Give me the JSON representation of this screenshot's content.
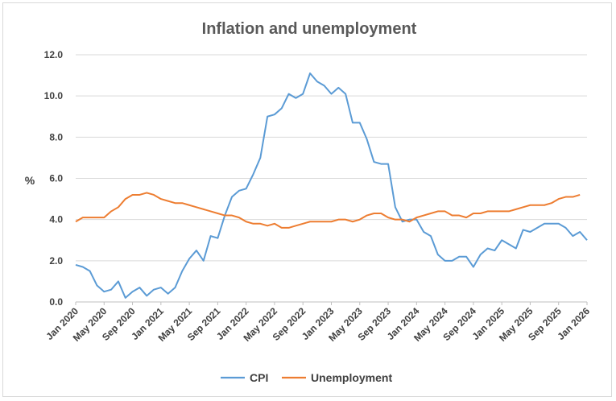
{
  "chart_data": {
    "type": "line",
    "title": "Inflation and unemployment",
    "xlabel": "",
    "ylabel": "%",
    "ylim": [
      0,
      12
    ],
    "yticks": [
      "0.0",
      "2.0",
      "4.0",
      "6.0",
      "8.0",
      "10.0",
      "12.0"
    ],
    "grid": "horizontal",
    "legend_position": "bottom",
    "x_tick_labels": [
      "Jan 2020",
      "May 2020",
      "Sep 2020",
      "Jan 2021",
      "May 2021",
      "Sep 2021",
      "Jan 2022",
      "May 2022",
      "Sep 2022",
      "Jan 2023",
      "May 2023",
      "Sep 2023",
      "Jan 2024",
      "May 2024",
      "Sep 2024",
      "Jan 2025",
      "May 2025",
      "Sep 2025",
      "Jan 2026"
    ],
    "x_start": "Jan 2020",
    "x_end": "Jan 2026",
    "series": [
      {
        "name": "CPI",
        "color": "#5b9bd5",
        "values": [
          1.8,
          1.7,
          1.5,
          0.8,
          0.5,
          0.6,
          1.0,
          0.2,
          0.5,
          0.7,
          0.3,
          0.6,
          0.7,
          0.4,
          0.7,
          1.5,
          2.1,
          2.5,
          2.0,
          3.2,
          3.1,
          4.2,
          5.1,
          5.4,
          5.5,
          6.2,
          7.0,
          9.0,
          9.1,
          9.4,
          10.1,
          9.9,
          10.1,
          11.1,
          10.7,
          10.5,
          10.1,
          10.4,
          10.1,
          8.7,
          8.7,
          7.9,
          6.8,
          6.7,
          6.7,
          4.6,
          3.9,
          4.0,
          4.0,
          3.4,
          3.2,
          2.3,
          2.0,
          2.0,
          2.2,
          2.2,
          1.7,
          2.3,
          2.6,
          2.5,
          3.0,
          2.8,
          2.6,
          3.5,
          3.4,
          3.6,
          3.8,
          3.8,
          3.8,
          3.6,
          3.2,
          3.4,
          3.0
        ]
      },
      {
        "name": "Unemployment",
        "color": "#ed7d31",
        "values": [
          3.9,
          4.1,
          4.1,
          4.1,
          4.1,
          4.4,
          4.6,
          5.0,
          5.2,
          5.2,
          5.3,
          5.2,
          5.0,
          4.9,
          4.8,
          4.8,
          4.7,
          4.6,
          4.5,
          4.4,
          4.3,
          4.2,
          4.2,
          4.1,
          3.9,
          3.8,
          3.8,
          3.7,
          3.8,
          3.6,
          3.6,
          3.7,
          3.8,
          3.9,
          3.9,
          3.9,
          3.9,
          4.0,
          4.0,
          3.9,
          4.0,
          4.2,
          4.3,
          4.3,
          4.1,
          4.0,
          4.0,
          3.9,
          4.1,
          4.2,
          4.3,
          4.4,
          4.4,
          4.2,
          4.2,
          4.1,
          4.3,
          4.3,
          4.4,
          4.4,
          4.4,
          4.4,
          4.5,
          4.6,
          4.7,
          4.7,
          4.7,
          4.8,
          5.0,
          5.1,
          5.1,
          5.2
        ]
      }
    ]
  }
}
